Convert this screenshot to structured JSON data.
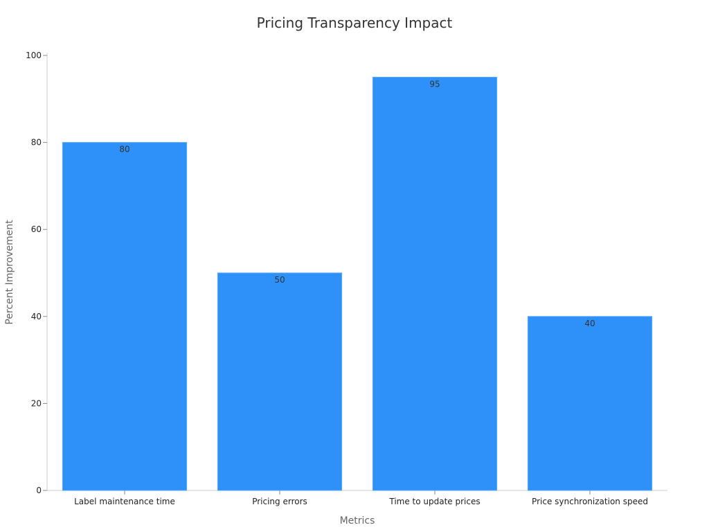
{
  "chart_data": {
    "type": "bar",
    "title": "Pricing Transparency Impact",
    "xlabel": "Metrics",
    "ylabel": "Percent Improvement",
    "categories": [
      "Label maintenance time",
      "Pricing errors",
      "Time to update prices",
      "Price synchronization speed"
    ],
    "values": [
      80,
      50,
      95,
      40
    ],
    "ylim": [
      0,
      100
    ],
    "yticks": [
      0,
      20,
      40,
      60,
      80,
      100
    ],
    "ytick_labels": [
      "0",
      "20",
      "40",
      "60",
      "80",
      "100"
    ],
    "value_labels": [
      "80",
      "50",
      "95",
      "40"
    ],
    "bar_color": "#2e91f9",
    "grid": false,
    "legend": "none"
  }
}
